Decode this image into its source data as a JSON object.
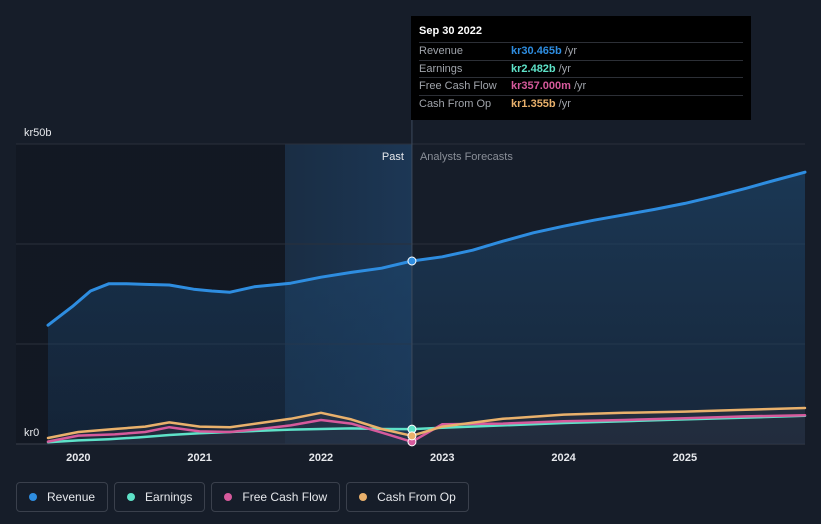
{
  "tooltip": {
    "date": "Sep 30 2022",
    "rows": [
      {
        "name": "Revenue",
        "value": "kr30.465b",
        "unit": "/yr",
        "color": "#2e8de0"
      },
      {
        "name": "Earnings",
        "value": "kr2.482b",
        "unit": "/yr",
        "color": "#5ee2c8"
      },
      {
        "name": "Free Cash Flow",
        "value": "kr357.000m",
        "unit": "/yr",
        "color": "#d65a9c"
      },
      {
        "name": "Cash From Op",
        "value": "kr1.355b",
        "unit": "/yr",
        "color": "#e9b16c"
      }
    ]
  },
  "legend": [
    {
      "label": "Revenue",
      "color": "#2e8de0"
    },
    {
      "label": "Earnings",
      "color": "#5ee2c8"
    },
    {
      "label": "Free Cash Flow",
      "color": "#d65a9c"
    },
    {
      "label": "Cash From Op",
      "color": "#e9b16c"
    }
  ],
  "chart_data": {
    "type": "line",
    "y_axis_labels": [
      "kr50b",
      "kr0"
    ],
    "ylim": [
      0,
      50
    ],
    "xlim": [
      2019.75,
      2025.99
    ],
    "divider_x": 2022.75,
    "period_labels": {
      "past": "Past",
      "forecast": "Analysts Forecasts"
    },
    "x_ticks": [
      {
        "x": 2020,
        "label": "2020"
      },
      {
        "x": 2021,
        "label": "2021"
      },
      {
        "x": 2022,
        "label": "2022"
      },
      {
        "x": 2023,
        "label": "2023"
      },
      {
        "x": 2024,
        "label": "2024"
      },
      {
        "x": 2025,
        "label": "2025"
      }
    ],
    "series": [
      {
        "name": "Revenue",
        "color": "#2e8de0",
        "points": [
          [
            2019.75,
            19.8
          ],
          [
            2019.95,
            22.9
          ],
          [
            2020.1,
            25.5
          ],
          [
            2020.25,
            26.7
          ],
          [
            2020.4,
            26.7
          ],
          [
            2020.55,
            26.6
          ],
          [
            2020.75,
            26.5
          ],
          [
            2020.95,
            25.8
          ],
          [
            2021.1,
            25.5
          ],
          [
            2021.25,
            25.3
          ],
          [
            2021.45,
            26.2
          ],
          [
            2021.75,
            26.8
          ],
          [
            2022.0,
            27.8
          ],
          [
            2022.25,
            28.6
          ],
          [
            2022.5,
            29.3
          ],
          [
            2022.75,
            30.5
          ],
          [
            2023.0,
            31.2
          ],
          [
            2023.25,
            32.3
          ],
          [
            2023.5,
            33.8
          ],
          [
            2023.75,
            35.2
          ],
          [
            2024.0,
            36.3
          ],
          [
            2024.25,
            37.3
          ],
          [
            2024.5,
            38.2
          ],
          [
            2024.75,
            39.1
          ],
          [
            2025.0,
            40.1
          ],
          [
            2025.25,
            41.3
          ],
          [
            2025.5,
            42.6
          ],
          [
            2025.75,
            44.0
          ],
          [
            2025.99,
            45.3
          ]
        ]
      },
      {
        "name": "Earnings",
        "color": "#5ee2c8",
        "points": [
          [
            2019.75,
            0.3
          ],
          [
            2020.0,
            0.6
          ],
          [
            2020.25,
            0.8
          ],
          [
            2020.5,
            1.1
          ],
          [
            2020.75,
            1.5
          ],
          [
            2021.0,
            1.8
          ],
          [
            2021.25,
            2.0
          ],
          [
            2021.5,
            2.2
          ],
          [
            2021.75,
            2.4
          ],
          [
            2022.0,
            2.5
          ],
          [
            2022.25,
            2.6
          ],
          [
            2022.5,
            2.5
          ],
          [
            2022.75,
            2.48
          ],
          [
            2023.0,
            2.7
          ],
          [
            2023.5,
            3.1
          ],
          [
            2024.0,
            3.5
          ],
          [
            2024.5,
            3.8
          ],
          [
            2025.0,
            4.1
          ],
          [
            2025.5,
            4.4
          ],
          [
            2025.99,
            4.7
          ]
        ]
      },
      {
        "name": "Free Cash Flow",
        "color": "#d65a9c",
        "points": [
          [
            2019.75,
            0.4
          ],
          [
            2020.0,
            1.4
          ],
          [
            2020.3,
            1.6
          ],
          [
            2020.55,
            2.0
          ],
          [
            2020.75,
            2.8
          ],
          [
            2021.0,
            2.1
          ],
          [
            2021.25,
            2.0
          ],
          [
            2021.5,
            2.5
          ],
          [
            2021.75,
            3.1
          ],
          [
            2022.0,
            4.0
          ],
          [
            2022.25,
            3.4
          ],
          [
            2022.5,
            1.9
          ],
          [
            2022.75,
            0.36
          ],
          [
            2023.0,
            3.3
          ],
          [
            2023.5,
            3.4
          ],
          [
            2024.0,
            3.8
          ],
          [
            2024.5,
            4.0
          ],
          [
            2025.0,
            4.3
          ],
          [
            2025.5,
            4.6
          ],
          [
            2025.99,
            4.8
          ]
        ]
      },
      {
        "name": "Cash From Op",
        "color": "#e9b16c",
        "points": [
          [
            2019.75,
            1.0
          ],
          [
            2020.0,
            2.0
          ],
          [
            2020.3,
            2.5
          ],
          [
            2020.55,
            2.9
          ],
          [
            2020.75,
            3.6
          ],
          [
            2021.0,
            2.9
          ],
          [
            2021.25,
            2.8
          ],
          [
            2021.5,
            3.5
          ],
          [
            2021.75,
            4.2
          ],
          [
            2022.0,
            5.2
          ],
          [
            2022.25,
            4.1
          ],
          [
            2022.5,
            2.5
          ],
          [
            2022.75,
            1.36
          ],
          [
            2023.0,
            2.9
          ],
          [
            2023.5,
            4.2
          ],
          [
            2024.0,
            4.9
          ],
          [
            2024.5,
            5.2
          ],
          [
            2025.0,
            5.4
          ],
          [
            2025.5,
            5.7
          ],
          [
            2025.99,
            6.0
          ]
        ]
      }
    ]
  }
}
